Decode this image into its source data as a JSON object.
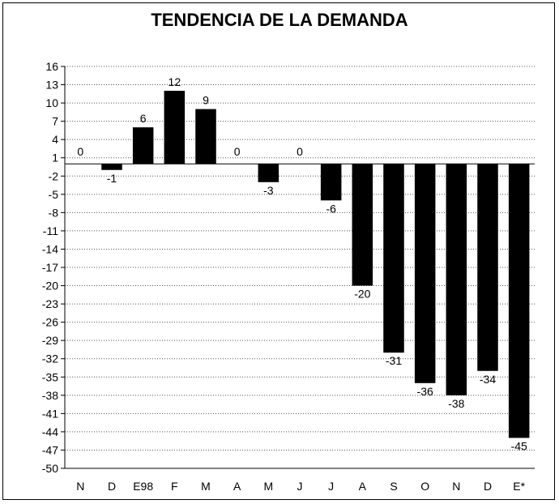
{
  "chart_data": {
    "type": "bar",
    "title": "TENDENCIA DE LA DEMANDA",
    "xlabel": "",
    "ylabel": "",
    "categories": [
      "N",
      "D",
      "E98",
      "F",
      "M",
      "A",
      "M",
      "J",
      "J",
      "A",
      "S",
      "O",
      "N",
      "D",
      "E*"
    ],
    "values": [
      0,
      -1,
      6,
      12,
      9,
      0,
      -3,
      0,
      -6,
      -20,
      -31,
      -36,
      -38,
      -34,
      -45
    ],
    "data_labels": [
      "0",
      "-1",
      "6",
      "12",
      "9",
      "0",
      "-3",
      "0",
      "-6",
      "-20",
      "-31",
      "-36",
      "-38",
      "-34",
      "-45"
    ],
    "ylim": [
      -50,
      16
    ],
    "yticks": [
      16,
      13,
      10,
      7,
      4,
      1,
      -2,
      -5,
      -8,
      -11,
      -14,
      -17,
      -20,
      -23,
      -26,
      -29,
      -32,
      -35,
      -38,
      -41,
      -44,
      -47,
      -50
    ],
    "grid": true,
    "bar_color": "#000000",
    "grid_color": "#555555"
  }
}
